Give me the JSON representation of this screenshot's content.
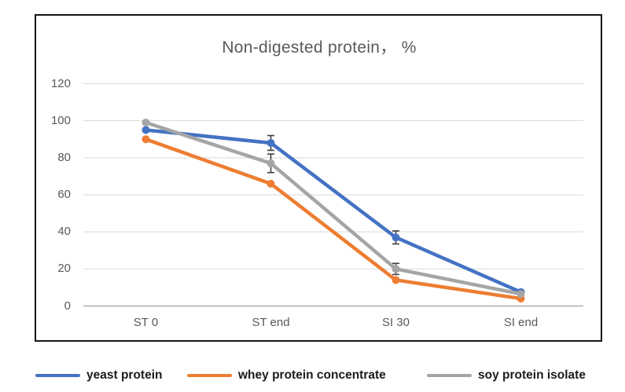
{
  "chart_data": {
    "type": "line",
    "title": "Non-digested protein， %",
    "categories": [
      "ST 0",
      "ST end",
      "SI 30",
      "SI end"
    ],
    "series": [
      {
        "name": "yeast protein",
        "color": "#4472C4",
        "values": [
          95,
          88,
          37,
          7.5
        ],
        "error_bars": [
          null,
          4,
          3.5,
          null
        ]
      },
      {
        "name": "whey protein concentrate",
        "color": "#ED7D31",
        "values": [
          90,
          66,
          14,
          4
        ],
        "error_bars": [
          null,
          null,
          null,
          null
        ]
      },
      {
        "name": "soy protein isolate",
        "color": "#A5A5A5",
        "values": [
          99,
          77,
          20,
          6.5
        ],
        "error_bars": [
          null,
          5,
          3,
          null
        ]
      }
    ],
    "xlabel": "",
    "ylabel": "",
    "ylim": [
      0,
      120
    ],
    "yticks": [
      0,
      20,
      40,
      60,
      80,
      100,
      120
    ],
    "grid": true,
    "legend_position": "bottom-outside"
  },
  "colors": {
    "frame_border": "#161616",
    "title_text": "#595959",
    "axis_text": "#595959",
    "gridline": "#D9D9D9",
    "axis_line": "#ADADAD",
    "error_bar": "#404040",
    "legend_text": "#1b1b1b",
    "background": "#ffffff"
  }
}
